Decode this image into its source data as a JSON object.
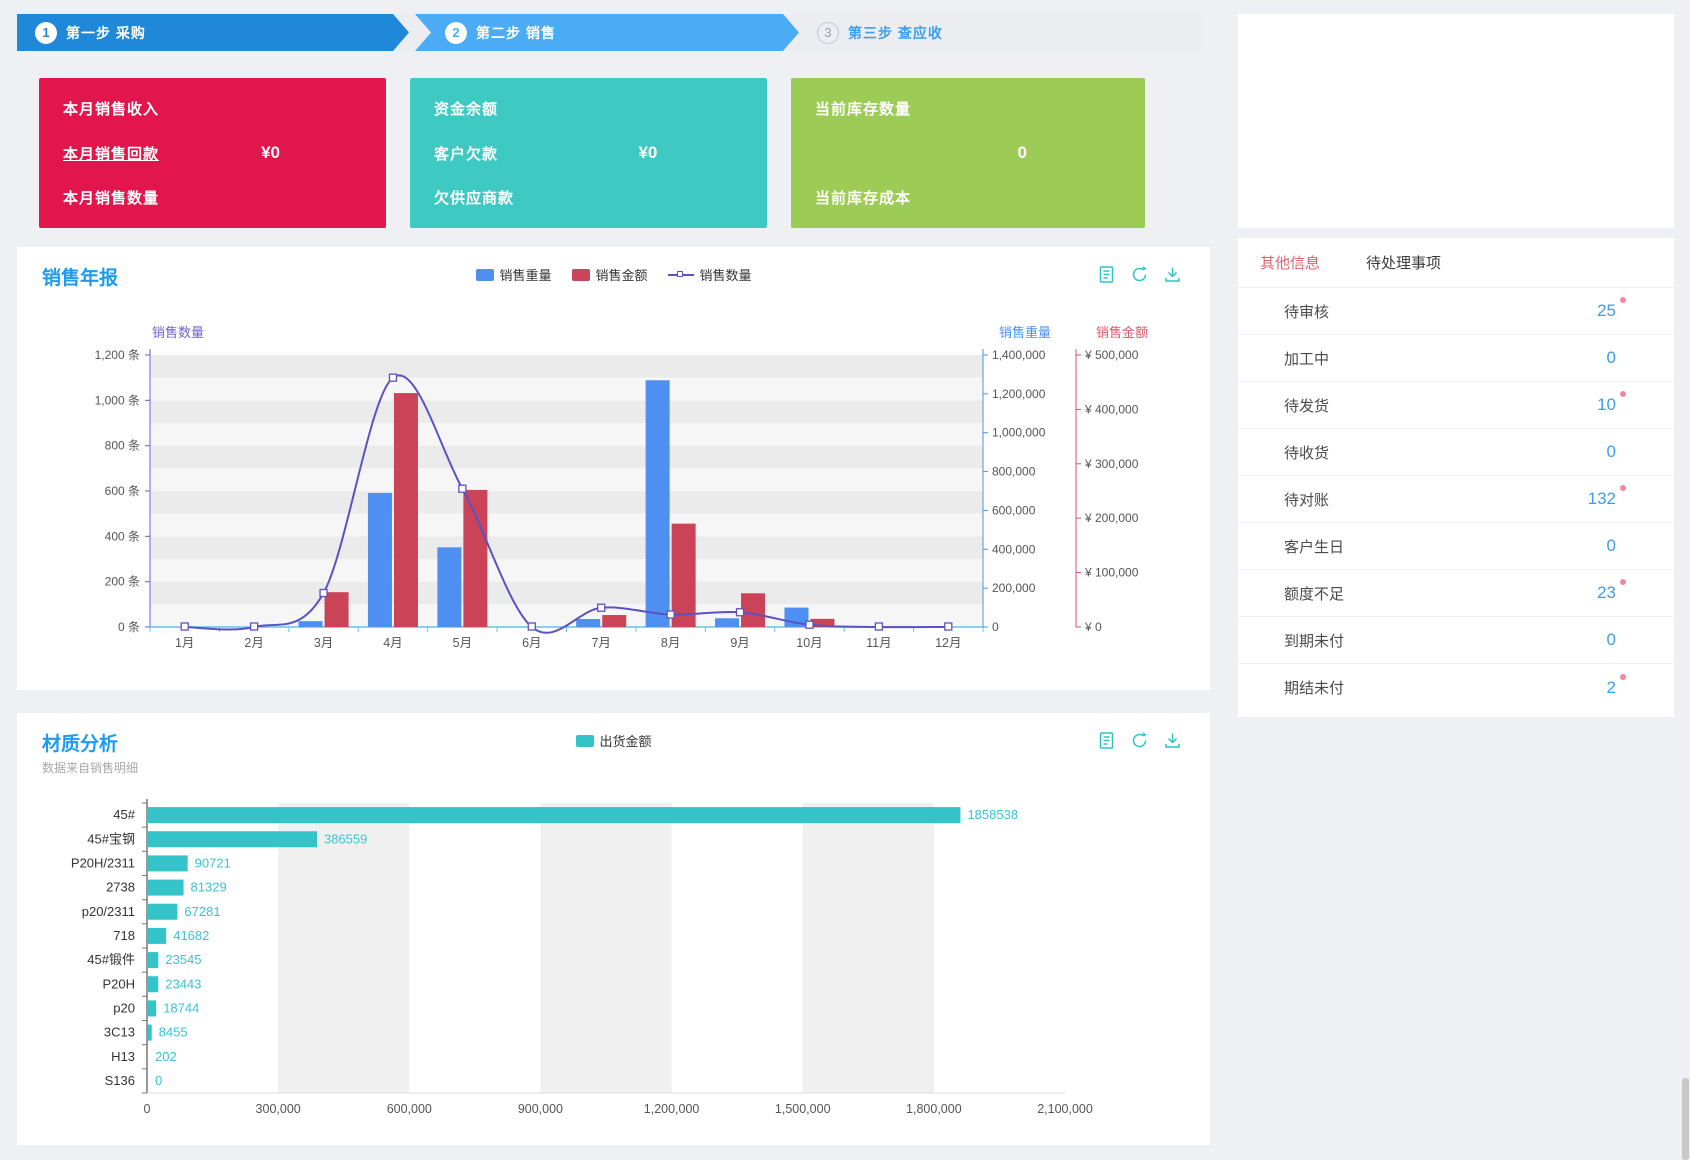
{
  "steps": [
    {
      "num": "1",
      "label": "第一步 采购"
    },
    {
      "num": "2",
      "label": "第二步 销售"
    },
    {
      "num": "3",
      "label": "第三步 查应收"
    }
  ],
  "cards": {
    "sales": {
      "rows": [
        "本月销售收入",
        "本月销售回款",
        "本月销售数量"
      ],
      "value": "¥0"
    },
    "funds": {
      "rows": [
        "资金余额",
        "客户欠款",
        "欠供应商款"
      ],
      "value": "¥0"
    },
    "inventory": {
      "rows": [
        "当前库存数量",
        "当前库存成本"
      ],
      "value": "0"
    }
  },
  "annual": {
    "title": "销售年报",
    "legend": [
      "销售重量",
      "销售金额",
      "销售数量"
    ],
    "icons": [
      "report-icon",
      "refresh-icon",
      "download-icon"
    ]
  },
  "material": {
    "title": "材质分析",
    "subtitle": "数据来自销售明细",
    "legend": "出货金额",
    "icons": [
      "report-icon",
      "refresh-icon",
      "download-icon"
    ]
  },
  "panel": {
    "tabs": [
      {
        "label": "其他信息",
        "active": true
      },
      {
        "label": "待处理事项",
        "active": false
      }
    ],
    "items": [
      {
        "label": "待审核",
        "value": "25",
        "dot": true
      },
      {
        "label": "加工中",
        "value": "0",
        "dot": false
      },
      {
        "label": "待发货",
        "value": "10",
        "dot": true
      },
      {
        "label": "待收货",
        "value": "0",
        "dot": false
      },
      {
        "label": "待对账",
        "value": "132",
        "dot": true
      },
      {
        "label": "客户生日",
        "value": "0",
        "dot": false
      },
      {
        "label": "额度不足",
        "value": "23",
        "dot": true
      },
      {
        "label": "到期未付",
        "value": "0",
        "dot": false
      },
      {
        "label": "期结未付",
        "value": "2",
        "dot": true
      }
    ]
  },
  "colors": {
    "accent_blue": "#1e9af0",
    "card_red": "#e2164d",
    "card_teal": "#3ec9c2",
    "card_green": "#9ccb56",
    "icon_teal": "#2ac3c9",
    "badge_dot": "#f2889c",
    "panel_value_blue": "#3a9ef0",
    "tab_active_red": "#e4606d"
  },
  "chart_data": [
    {
      "type": "bar",
      "title": "销售年报",
      "categories": [
        "1月",
        "2月",
        "3月",
        "4月",
        "5月",
        "6月",
        "7月",
        "8月",
        "9月",
        "10月",
        "11月",
        "12月"
      ],
      "series": [
        {
          "name": "销售重量",
          "type": "bar",
          "axis": "weight",
          "color": "#4e8ff2",
          "values": [
            0,
            0,
            30000,
            690000,
            410000,
            0,
            41000,
            1270000,
            45000,
            100000,
            0,
            0
          ]
        },
        {
          "name": "销售金额",
          "type": "bar",
          "axis": "amount",
          "color": "#cb4357",
          "values": [
            0,
            0,
            64000,
            430000,
            252000,
            0,
            22000,
            190000,
            62000,
            15000,
            0,
            0
          ]
        },
        {
          "name": "销售数量",
          "type": "line",
          "axis": "count",
          "color": "#5a52c2",
          "values": [
            0,
            0,
            150,
            1100,
            610,
            0,
            85,
            55,
            65,
            10,
            0,
            0
          ]
        }
      ],
      "axes": {
        "count": {
          "name": "销售数量",
          "position": "left",
          "min": 0,
          "max": 1200,
          "interval": 200,
          "suffix": " 条",
          "color": "#7262cf"
        },
        "weight": {
          "name": "销售重量",
          "position": "right",
          "min": 0,
          "max": 1400000,
          "interval": 200000,
          "suffix": "",
          "color": "#4a90f0"
        },
        "amount": {
          "name": "销售金额",
          "position": "right-outer",
          "min": 0,
          "max": 500000,
          "interval": 100000,
          "prefix": "¥ ",
          "color": "#e4566b"
        }
      },
      "legend_position": "top-center",
      "grid": "horizontal-zebra"
    },
    {
      "type": "bar",
      "orientation": "horizontal",
      "title": "材质分析",
      "subtitle": "数据来自销售明细",
      "legend": [
        "出货金额"
      ],
      "bar_color": "#34c3c9",
      "label_color": "#36c6d2",
      "categories": [
        "45#",
        "45#宝钢",
        "P20H/2311",
        "2738",
        "p20/2311",
        "718",
        "45#锻件",
        "P20H",
        "p20",
        "3C13",
        "H13",
        "S136"
      ],
      "values": [
        1858538,
        386559,
        90721,
        81329,
        67281,
        41682,
        23545,
        23443,
        18744,
        8455,
        202,
        0
      ],
      "xlim": [
        0,
        2100000
      ],
      "x_interval": 300000,
      "grid": "vertical-zebra"
    }
  ]
}
